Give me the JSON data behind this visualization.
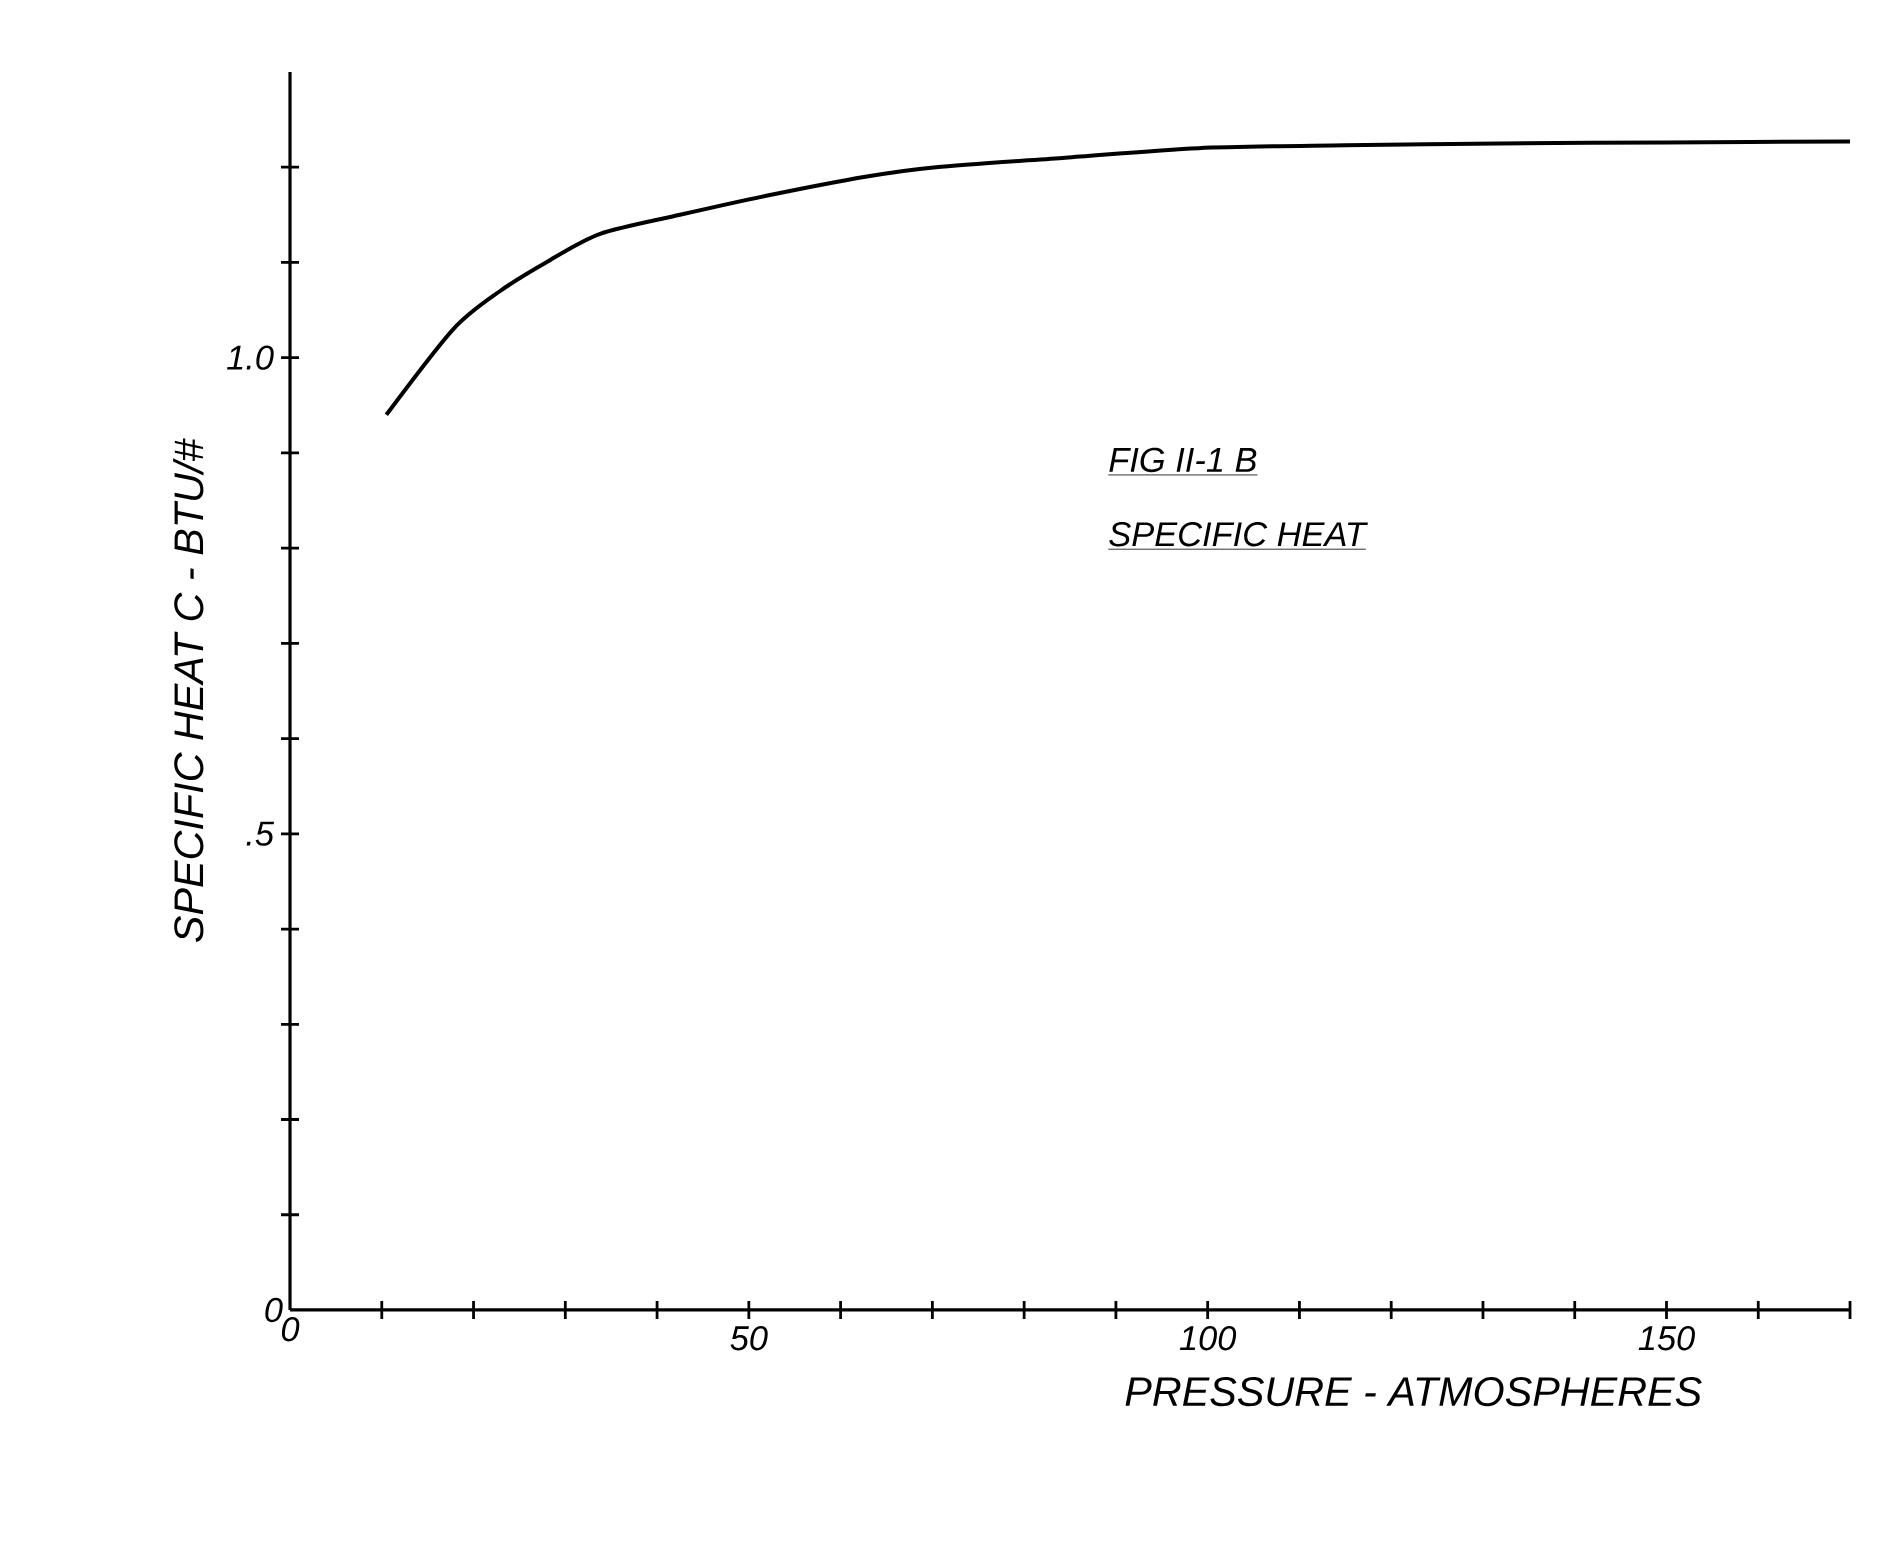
{
  "chart_data": {
    "type": "line",
    "xlabel": "PRESSURE - ATMOSPHERES",
    "ylabel": "SPECIFIC HEAT C - BTU/#",
    "annotations": [
      "FIG II-1 B",
      "SPECIFIC HEAT"
    ],
    "x": [
      10.5,
      17.8,
      22.9,
      27.9,
      33.8,
      42.5,
      51.9,
      62.7,
      70.4,
      84.5,
      99,
      115,
      131.8,
      150,
      170
    ],
    "values": [
      0.94,
      1.03,
      1.07,
      1.1,
      1.13,
      1.15,
      1.17,
      1.19,
      1.2,
      1.21,
      1.22,
      1.223,
      1.225,
      1.226,
      1.227
    ],
    "color": "#000000",
    "marker": "none",
    "line_style": "solid",
    "xlim": [
      0,
      170
    ],
    "ylim": [
      0,
      1.3
    ],
    "xticks": [
      0,
      {
        "value": 10,
        "label": null
      },
      {
        "value": 20,
        "label": null
      },
      {
        "value": 30,
        "label": null
      },
      {
        "value": 40,
        "label": null
      },
      50,
      {
        "value": 60,
        "label": null
      },
      {
        "value": 70,
        "label": null
      },
      {
        "value": 80,
        "label": null
      },
      {
        "value": 90,
        "label": null
      },
      100,
      {
        "value": 110,
        "label": null
      },
      {
        "value": 120,
        "label": null
      },
      {
        "value": 130,
        "label": null
      },
      {
        "value": 140,
        "label": null
      },
      150,
      {
        "value": 160,
        "label": null
      },
      {
        "value": 170,
        "label": null
      }
    ],
    "yticks": [
      0,
      {
        "value": 0.1,
        "label": null
      },
      {
        "value": 0.2,
        "label": null
      },
      {
        "value": 0.3,
        "label": null
      },
      {
        "value": 0.4,
        "label": null
      },
      {
        "value": 0.5,
        "label": ".5"
      },
      {
        "value": 0.6,
        "label": null
      },
      {
        "value": 0.7,
        "label": null
      },
      {
        "value": 0.8,
        "label": null
      },
      {
        "value": 0.9,
        "label": null
      },
      {
        "value": 1.0,
        "label": "1.0"
      },
      {
        "value": 1.1,
        "label": null
      },
      {
        "value": 1.2,
        "label": null
      }
    ]
  }
}
